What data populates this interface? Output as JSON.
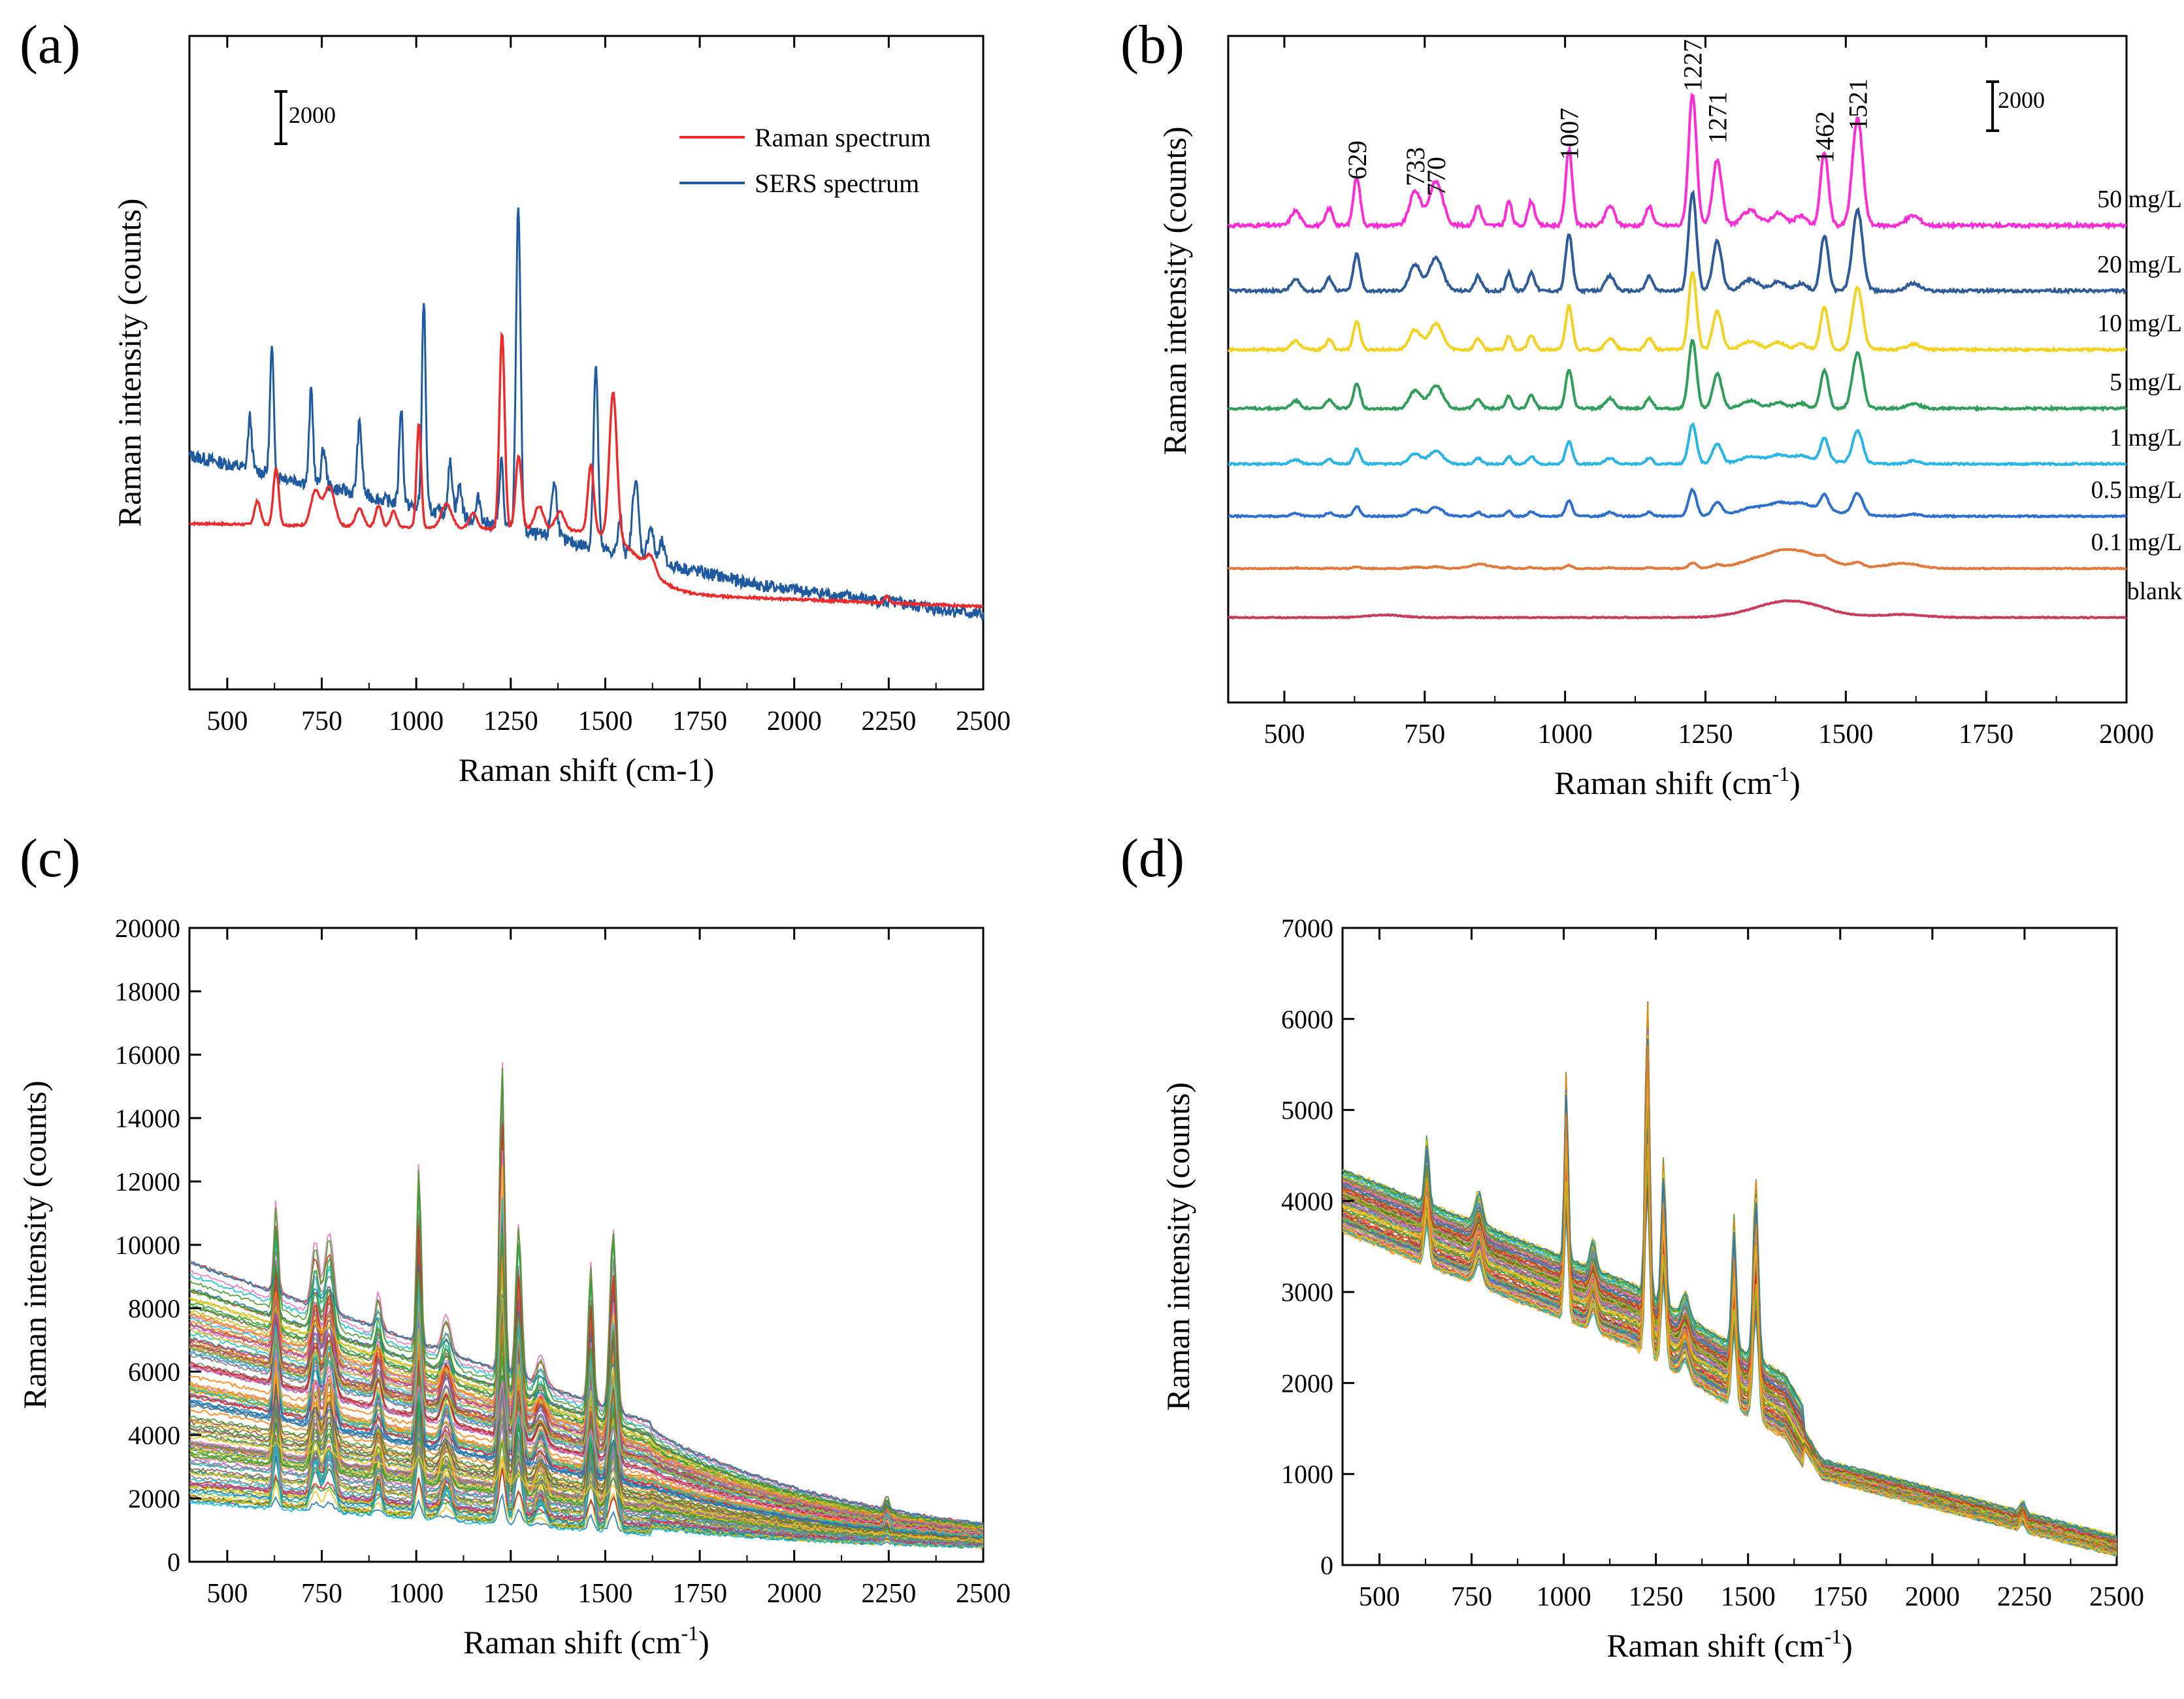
{
  "panels": [
    {
      "label": "(a)",
      "type": "line",
      "xlabel": "Raman shift (cm-1)",
      "ylabel": "Raman intensity (counts)",
      "xlim": [
        400,
        2500
      ],
      "xticks": [
        500,
        750,
        1000,
        1250,
        1500,
        1750,
        2000,
        2250,
        2500
      ],
      "show_y_ticks": false,
      "scalebar_label": "2000",
      "scalebar_value": 2000,
      "legend_position": "top-right",
      "series": [
        {
          "name": "Raman spectrum",
          "color": "#ee2b2b"
        },
        {
          "name": "SERS spectrum",
          "color": "#1f5aa0"
        }
      ]
    },
    {
      "label": "(b)",
      "type": "line",
      "xlabel_main": "Raman shift (cm",
      "xlabel_sup": "-1",
      "xlabel_tail": ")",
      "ylabel": "Raman intensity (counts)",
      "xlim": [
        400,
        2000
      ],
      "xticks": [
        500,
        750,
        1000,
        1250,
        1500,
        1750,
        2000
      ],
      "show_y_ticks": false,
      "scalebar_label": "2000",
      "scalebar_value": 2000,
      "peak_labels": [
        "629",
        "733",
        "770",
        "1007",
        "1227",
        "1271",
        "1462",
        "1521"
      ],
      "peak_positions": [
        629,
        733,
        770,
        1007,
        1227,
        1271,
        1462,
        1521
      ],
      "series": [
        {
          "name": "50 mg/L",
          "color": "#ff2bd6"
        },
        {
          "name": "20 mg/L",
          "color": "#2e5c9a"
        },
        {
          "name": "10 mg/L",
          "color": "#f2d21e"
        },
        {
          "name": "5  mg/L",
          "color": "#2f9e5a"
        },
        {
          "name": "1  mg/L",
          "color": "#27b4e6"
        },
        {
          "name": "0.5 mg/L",
          "color": "#2f6ed1"
        },
        {
          "name": "0.1 mg/L",
          "color": "#e07a3c"
        },
        {
          "name": "blank",
          "color": "#c93c5a"
        }
      ]
    },
    {
      "label": "(c)",
      "type": "line",
      "xlabel_main": "Raman shift (cm",
      "xlabel_sup": "-1",
      "xlabel_tail": ")",
      "ylabel": "Raman intensity (counts)",
      "xlim": [
        400,
        2500
      ],
      "ylim": [
        0,
        20000
      ],
      "xticks": [
        500,
        750,
        1000,
        1250,
        1500,
        1750,
        2000,
        2250,
        2500
      ],
      "yticks": [
        0,
        2000,
        4000,
        6000,
        8000,
        10000,
        12000,
        14000,
        16000,
        18000,
        20000
      ]
    },
    {
      "label": "(d)",
      "type": "line",
      "xlabel_main": "Raman shift (cm",
      "xlabel_sup": "-1",
      "xlabel_tail": ")",
      "ylabel": "Raman intensity (counts)",
      "xlim": [
        400,
        2500
      ],
      "ylim": [
        0,
        7000
      ],
      "xticks": [
        500,
        750,
        1000,
        1250,
        1500,
        1750,
        2000,
        2250,
        2500
      ],
      "yticks": [
        0,
        1000,
        2000,
        3000,
        4000,
        5000,
        6000,
        7000
      ]
    }
  ],
  "chart_data": [
    {
      "type": "line",
      "title": "",
      "xlabel": "Raman shift (cm-1)",
      "ylabel": "Raman intensity (counts)",
      "series": [
        {
          "name": "Raman spectrum",
          "peaks_x": [
            629,
            733,
            770,
            1007,
            1227,
            1271,
            1462,
            1521
          ]
        },
        {
          "name": "SERS spectrum",
          "peaks_x": [
            560,
            618,
            722,
            850,
            960,
            1020,
            1225,
            1270,
            1365,
            1475,
            1580
          ]
        }
      ]
    },
    {
      "type": "line",
      "title": "",
      "xlabel": "Raman shift (cm-1)",
      "ylabel": "Raman intensity (counts)",
      "series": [
        {
          "name": "50 mg/L"
        },
        {
          "name": "20 mg/L"
        },
        {
          "name": "10 mg/L"
        },
        {
          "name": "5  mg/L"
        },
        {
          "name": "1  mg/L"
        },
        {
          "name": "0.5 mg/L"
        },
        {
          "name": "0.1 mg/L"
        },
        {
          "name": "blank"
        }
      ],
      "annotations": [
        "629",
        "733",
        "770",
        "1007",
        "1227",
        "1271",
        "1462",
        "1521"
      ]
    },
    {
      "type": "line",
      "title": "",
      "xlabel": "Raman shift (cm-1)",
      "ylabel": "Raman intensity (counts)",
      "ylim": [
        0,
        20000
      ],
      "max_peak": {
        "x": 1227,
        "y": 17100
      }
    },
    {
      "type": "line",
      "title": "",
      "xlabel": "Raman shift (cm-1)",
      "ylabel": "Raman intensity (counts)",
      "ylim": [
        0,
        7000
      ],
      "max_peak": {
        "x": 1227,
        "y": 6350
      }
    }
  ]
}
